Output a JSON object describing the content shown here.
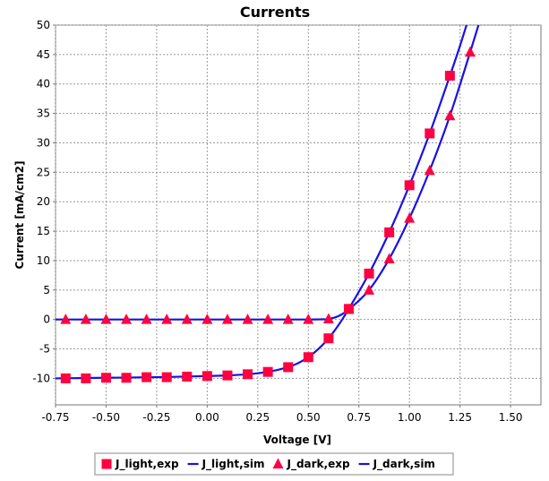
{
  "chart_data": {
    "type": "scatter",
    "title": "Currents",
    "xlabel": "Voltage [V]",
    "ylabel": "Current [mA/cm2]",
    "xlim": [
      -0.75,
      1.65
    ],
    "ylim": [
      -14.5,
      50
    ],
    "x_ticks": [
      -0.75,
      -0.5,
      -0.25,
      0.0,
      0.25,
      0.5,
      0.75,
      1.0,
      1.25,
      1.5
    ],
    "x_tick_labels": [
      "-0.75",
      "-0.50",
      "-0.25",
      "0.00",
      "0.25",
      "0.50",
      "0.75",
      "1.00",
      "1.25",
      "1.50"
    ],
    "y_ticks": [
      -10,
      -5,
      0,
      5,
      10,
      15,
      20,
      25,
      30,
      35,
      40,
      45,
      50
    ],
    "y_tick_labels": [
      "-10",
      "-5",
      "0",
      "5",
      "10",
      "15",
      "20",
      "25",
      "30",
      "35",
      "40",
      "45",
      "50"
    ],
    "grid": true,
    "legend_position": "bottom",
    "series": [
      {
        "name": "J_light,exp",
        "kind": "markers",
        "marker": "square",
        "color": "#ff0040",
        "x": [
          -0.7,
          -0.6,
          -0.5,
          -0.4,
          -0.3,
          -0.2,
          -0.1,
          0.0,
          0.1,
          0.2,
          0.3,
          0.4,
          0.5,
          0.6,
          0.7,
          0.8,
          0.9,
          1.0,
          1.1,
          1.2
        ],
        "y": [
          -10.0,
          -10.0,
          -9.9,
          -9.9,
          -9.8,
          -9.8,
          -9.7,
          -9.6,
          -9.5,
          -9.3,
          -8.9,
          -8.1,
          -6.4,
          -3.2,
          1.8,
          7.8,
          14.8,
          22.8,
          31.6,
          41.4
        ]
      },
      {
        "name": "J_light,sim",
        "kind": "line",
        "color": "#1a10e6",
        "x": [
          -0.75,
          -0.5,
          -0.25,
          0.0,
          0.1,
          0.2,
          0.3,
          0.4,
          0.45,
          0.5,
          0.55,
          0.6,
          0.65,
          0.7,
          0.8,
          0.9,
          1.0,
          1.1,
          1.2,
          1.25,
          1.3
        ],
        "y": [
          -10.0,
          -9.9,
          -9.8,
          -9.6,
          -9.5,
          -9.3,
          -8.9,
          -8.1,
          -7.4,
          -6.4,
          -5.0,
          -3.2,
          -0.9,
          1.8,
          7.8,
          14.8,
          22.8,
          31.6,
          41.4,
          46.5,
          52.0
        ]
      },
      {
        "name": "J_dark,exp",
        "kind": "markers",
        "marker": "triangle",
        "color": "#ff0040",
        "x": [
          -0.7,
          -0.6,
          -0.5,
          -0.4,
          -0.3,
          -0.2,
          -0.1,
          0.0,
          0.1,
          0.2,
          0.3,
          0.4,
          0.5,
          0.6,
          0.7,
          0.8,
          0.9,
          1.0,
          1.1,
          1.2,
          1.3
        ],
        "y": [
          0.0,
          0.0,
          0.0,
          0.0,
          0.0,
          0.0,
          0.0,
          0.0,
          0.0,
          0.0,
          0.0,
          0.0,
          0.0,
          0.1,
          1.7,
          5.0,
          10.3,
          17.2,
          25.3,
          34.6,
          45.4
        ]
      },
      {
        "name": "J_dark,sim",
        "kind": "line",
        "color": "#1a10e6",
        "x": [
          -0.75,
          -0.5,
          -0.25,
          0.0,
          0.25,
          0.5,
          0.55,
          0.6,
          0.65,
          0.7,
          0.8,
          0.9,
          1.0,
          1.1,
          1.2,
          1.3,
          1.35
        ],
        "y": [
          0.0,
          0.0,
          0.0,
          0.0,
          0.0,
          0.0,
          0.02,
          0.1,
          0.6,
          1.7,
          5.0,
          10.3,
          17.2,
          25.3,
          34.6,
          45.4,
          51.0
        ]
      }
    ]
  }
}
